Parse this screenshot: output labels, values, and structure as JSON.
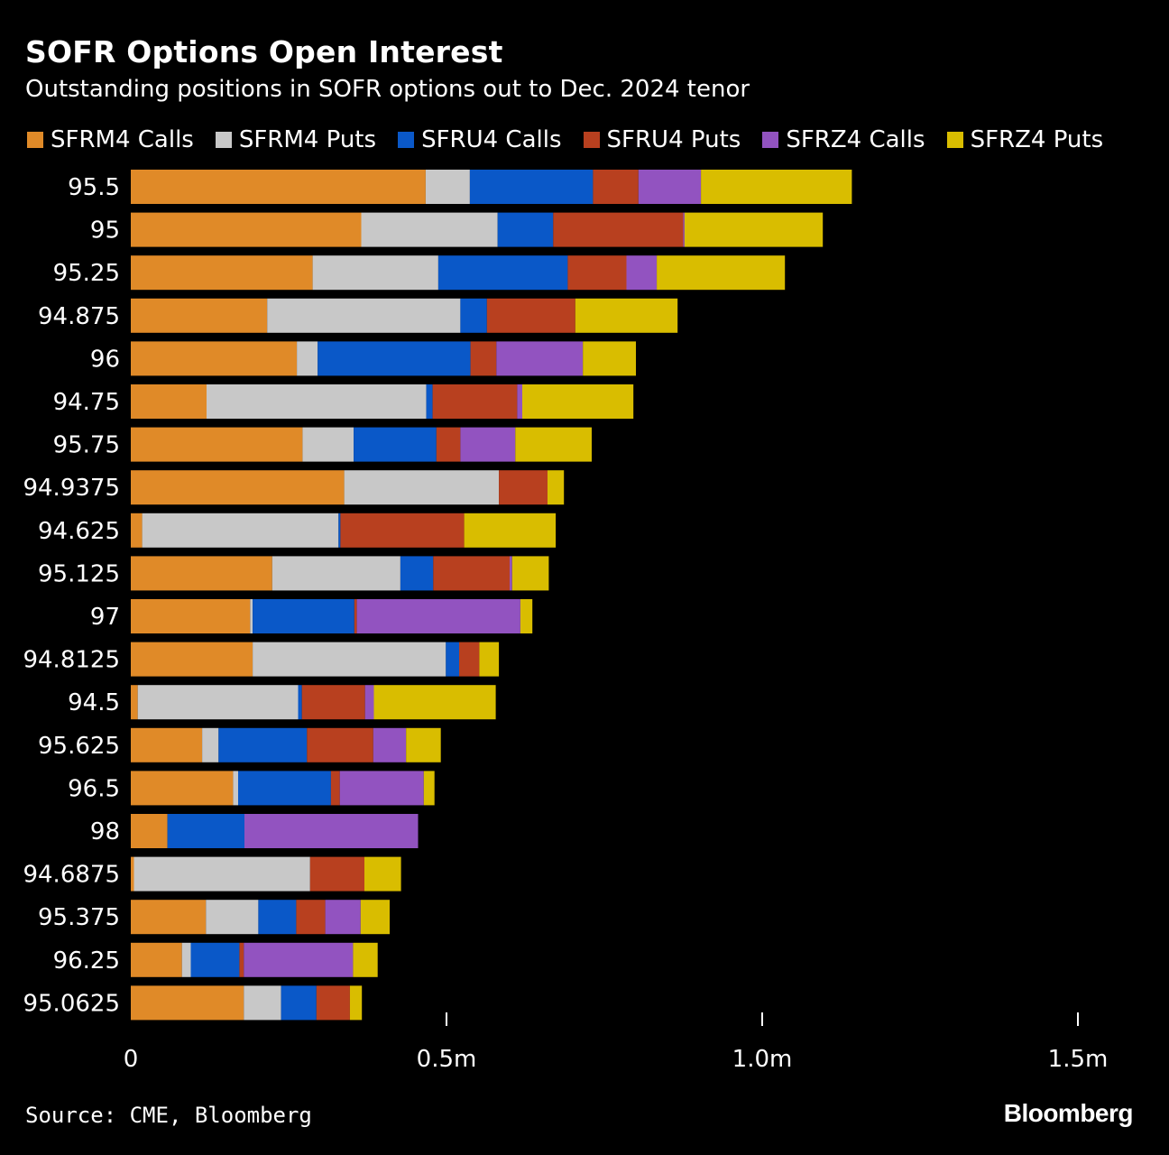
{
  "header": {
    "title": "SOFR Options Open Interest",
    "subtitle": "Outstanding positions in SOFR options out to Dec. 2024 tenor"
  },
  "footer": {
    "source": "Source: CME, Bloomberg",
    "brand": "Bloomberg"
  },
  "chart_data": {
    "type": "bar",
    "orientation": "horizontal",
    "stacked": true,
    "title": "SOFR Options Open Interest",
    "subtitle": "Outstanding positions in SOFR options out to Dec. 2024 tenor",
    "legend_position": "top",
    "grid": false,
    "xlim": [
      0,
      1500000
    ],
    "xticks": [
      {
        "value": 0,
        "label": "0"
      },
      {
        "value": 500000,
        "label": "0.5m"
      },
      {
        "value": 1000000,
        "label": "1.0m"
      },
      {
        "value": 1500000,
        "label": "1.5m"
      }
    ],
    "categories": [
      "95.5",
      "95",
      "95.25",
      "94.875",
      "96",
      "94.75",
      "95.75",
      "94.9375",
      "94.625",
      "95.125",
      "97",
      "94.8125",
      "94.5",
      "95.625",
      "96.5",
      "98",
      "94.6875",
      "95.375",
      "96.25",
      "95.0625"
    ],
    "series": [
      {
        "name": "SFRM4 Calls",
        "color": "#e08a28",
        "values": [
          467000,
          365000,
          288000,
          216000,
          263000,
          120000,
          272000,
          338000,
          18000,
          224000,
          189000,
          193000,
          11000,
          113000,
          162000,
          58000,
          5000,
          119000,
          81000,
          179000
        ]
      },
      {
        "name": "SFRM4 Puts",
        "color": "#c8c8c8",
        "values": [
          70000,
          216000,
          199000,
          306000,
          33000,
          348000,
          81000,
          245000,
          311000,
          203000,
          4000,
          306000,
          254000,
          26000,
          8000,
          0,
          279000,
          83000,
          14000,
          59000
        ]
      },
      {
        "name": "SFRU4 Calls",
        "color": "#0a58c8",
        "values": [
          195000,
          88000,
          205000,
          42000,
          242000,
          10000,
          131000,
          0,
          3000,
          52000,
          161000,
          21000,
          6000,
          140000,
          147000,
          122000,
          0,
          60000,
          77000,
          56000
        ]
      },
      {
        "name": "SFRU4 Puts",
        "color": "#b8401f",
        "values": [
          72000,
          206000,
          93000,
          140000,
          41000,
          134000,
          38000,
          77000,
          196000,
          121000,
          4000,
          32000,
          100000,
          105000,
          14000,
          0,
          86000,
          46000,
          7000,
          53000
        ]
      },
      {
        "name": "SFRZ4 Calls",
        "color": "#9253c0",
        "values": [
          99000,
          2000,
          48000,
          0,
          137000,
          8000,
          87000,
          0,
          0,
          4000,
          259000,
          0,
          14000,
          52000,
          133000,
          275000,
          0,
          56000,
          173000,
          0
        ]
      },
      {
        "name": "SFRZ4 Puts",
        "color": "#d9bd00",
        "values": [
          239000,
          219000,
          203000,
          162000,
          84000,
          176000,
          121000,
          26000,
          145000,
          58000,
          19000,
          31000,
          193000,
          55000,
          17000,
          0,
          58000,
          46000,
          39000,
          19000
        ]
      }
    ]
  }
}
